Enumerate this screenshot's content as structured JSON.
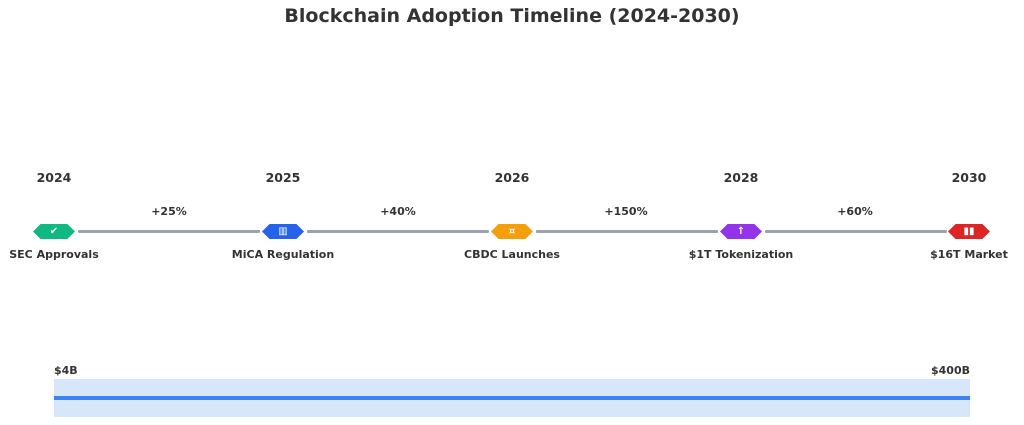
{
  "title": "Blockchain Adoption Timeline (2024-2030)",
  "timeline": [
    {
      "year": "2024",
      "label": "SEC Approvals",
      "icon": "check-icon",
      "glyph": "✔",
      "color": "#10b981"
    },
    {
      "year": "2025",
      "label": "MiCA Regulation",
      "icon": "building-icon",
      "glyph": "▥",
      "color": "#2563eb"
    },
    {
      "year": "2026",
      "label": "CBDC Launches",
      "icon": "currency-icon",
      "glyph": "¤",
      "color": "#f59e0b"
    },
    {
      "year": "2028",
      "label": "$1T Tokenization",
      "icon": "arrow-up-icon",
      "glyph": "↑",
      "color": "#9333ea"
    },
    {
      "year": "2030",
      "label": "$16T Market",
      "icon": "chart-icon",
      "glyph": "▮▮",
      "color": "#dc2626"
    }
  ],
  "growth": [
    "+25%",
    "+40%",
    "+150%",
    "+60%"
  ],
  "market": {
    "start_label": "$4B",
    "end_label": "$400B",
    "band_color": "#d6e6fb",
    "line_color": "#3b82f6"
  },
  "connector_color": "#9aa3ad"
}
